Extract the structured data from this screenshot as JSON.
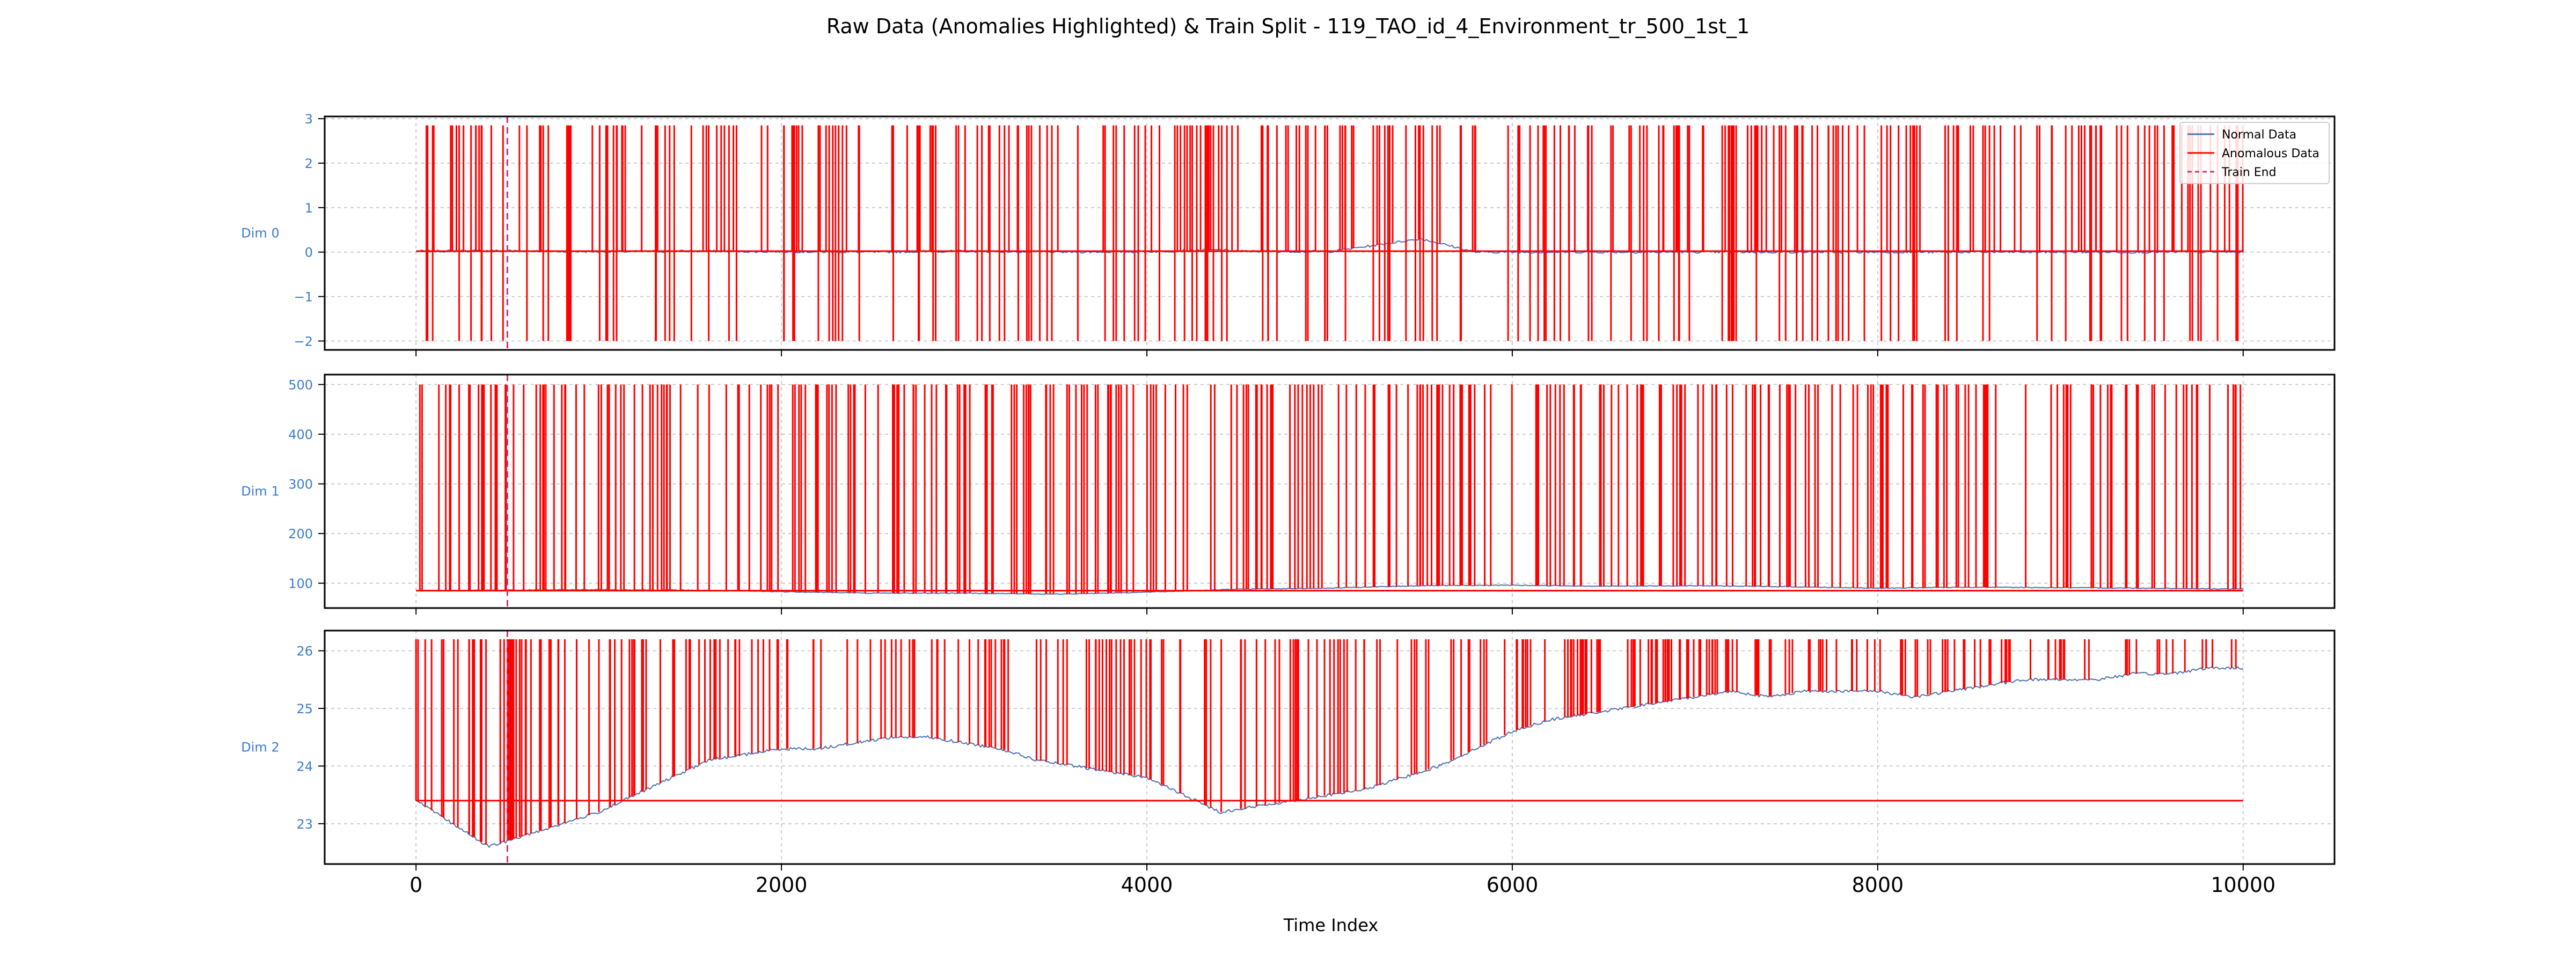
{
  "figure": {
    "title": "Raw Data (Anomalies Highlighted) & Train Split - 119_TAO_id_4_Environment_tr_500_1st_1",
    "xlabel": "Time Index"
  },
  "legend": {
    "items": [
      {
        "label": "Normal Data",
        "color": "#4c72b0",
        "style": "solid"
      },
      {
        "label": "Anomalous Data",
        "color": "#ff0000",
        "style": "solid"
      },
      {
        "label": "Train End",
        "color": "#c0397a",
        "style": "dashed"
      }
    ],
    "placement": "top-right"
  },
  "colors": {
    "normal": "#4c72b0",
    "anomaly": "#ff0000",
    "train_end": "#c0397a",
    "tick_label_dim": "#3a7bd5",
    "grid": "#cccccc"
  },
  "chart_data": [
    {
      "type": "line",
      "panel": "Dim 0",
      "ylabel": "Dim 0",
      "ylim": [
        -2.2,
        3.05
      ],
      "yticks": [
        3,
        2,
        1,
        0,
        -1,
        -2
      ],
      "ytick_labels": [
        "3",
        "2",
        "1",
        "0",
        "−1",
        "−2"
      ],
      "xlim": [
        -500,
        10500
      ],
      "anomaly_high": 2.85,
      "anomaly_low": -2.0,
      "series": [
        {
          "name": "Normal Data",
          "x": [
            0,
            500,
            1000,
            1500,
            2000,
            2500,
            3000,
            3500,
            4000,
            4400,
            4500,
            5000,
            5500,
            5800,
            6000,
            6500,
            7000,
            7500,
            8000,
            8500,
            9000,
            9500,
            10000
          ],
          "values": [
            0.02,
            0.03,
            0.01,
            0.02,
            0.01,
            0.0,
            0.02,
            0.0,
            0.01,
            0.05,
            0.02,
            0.01,
            0.3,
            0.0,
            0.0,
            0.0,
            0.0,
            0.0,
            0.0,
            0.0,
            0.0,
            0.0,
            0.0
          ]
        }
      ],
      "grid": true
    },
    {
      "type": "line",
      "panel": "Dim 1",
      "ylabel": "Dim 1",
      "ylim": [
        50,
        520
      ],
      "yticks": [
        500,
        400,
        300,
        200,
        100
      ],
      "ytick_labels": [
        "500",
        "400",
        "300",
        "200",
        "100"
      ],
      "xlim": [
        -500,
        10500
      ],
      "anomaly_high": 500,
      "series": [
        {
          "name": "Normal Data",
          "x": [
            0,
            500,
            1000,
            1500,
            2000,
            2500,
            3000,
            3500,
            4000,
            4500,
            5000,
            5500,
            6000,
            6500,
            7000,
            7500,
            8000,
            8500,
            9000,
            9500,
            10000
          ],
          "values": [
            85,
            86,
            87,
            86,
            83,
            80,
            80,
            78,
            82,
            88,
            90,
            95,
            96,
            94,
            95,
            93,
            90,
            92,
            91,
            90,
            88
          ]
        }
      ],
      "grid": true
    },
    {
      "type": "line",
      "panel": "Dim 2",
      "ylabel": "Dim 2",
      "ylim": [
        22.3,
        26.35
      ],
      "yticks": [
        26,
        25,
        24,
        23
      ],
      "ytick_labels": [
        "26",
        "25",
        "24",
        "23"
      ],
      "xlim": [
        -500,
        10500
      ],
      "anomaly_high": 26.2,
      "series": [
        {
          "name": "Normal Data",
          "x": [
            0,
            200,
            400,
            600,
            800,
            1000,
            1200,
            1400,
            1600,
            1800,
            2000,
            2200,
            2400,
            2600,
            2800,
            3000,
            3200,
            3400,
            3600,
            3800,
            4000,
            4200,
            4400,
            4600,
            4800,
            5000,
            5200,
            5400,
            5600,
            5800,
            6000,
            6200,
            6400,
            6600,
            6800,
            7000,
            7200,
            7400,
            7600,
            7800,
            8000,
            8200,
            8400,
            8600,
            8800,
            9000,
            9200,
            9400,
            9600,
            9800,
            10000
          ],
          "values": [
            23.4,
            23.0,
            22.6,
            22.8,
            23.0,
            23.2,
            23.5,
            23.8,
            24.1,
            24.2,
            24.3,
            24.3,
            24.4,
            24.5,
            24.5,
            24.4,
            24.3,
            24.1,
            24.0,
            23.9,
            23.8,
            23.5,
            23.2,
            23.3,
            23.4,
            23.5,
            23.6,
            23.8,
            24.0,
            24.3,
            24.6,
            24.8,
            24.9,
            25.0,
            25.1,
            25.2,
            25.3,
            25.2,
            25.3,
            25.3,
            25.3,
            25.2,
            25.3,
            25.4,
            25.5,
            25.5,
            25.5,
            25.6,
            25.6,
            25.7,
            25.7
          ]
        }
      ],
      "grid": true
    }
  ],
  "xaxis": {
    "ticks": [
      0,
      2000,
      4000,
      6000,
      8000,
      10000
    ],
    "tick_labels": [
      "0",
      "2000",
      "4000",
      "6000",
      "8000",
      "10000"
    ]
  },
  "train_end_x": 500
}
